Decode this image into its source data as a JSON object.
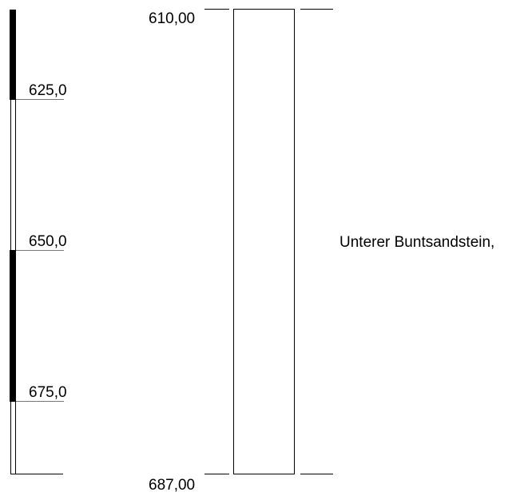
{
  "scale_bar": {
    "tick_labels": [
      "625,0",
      "650,0",
      "675,0"
    ],
    "segments": [
      {
        "from": 610.0,
        "to": 625.0,
        "fill": "black"
      },
      {
        "from": 625.0,
        "to": 650.0,
        "fill": "white"
      },
      {
        "from": 650.0,
        "to": 675.0,
        "fill": "black"
      },
      {
        "from": 675.0,
        "to": 687.0,
        "fill": "white"
      }
    ]
  },
  "column": {
    "top_depth_label": "610,00",
    "bottom_depth_label": "687,00"
  },
  "layers": [
    {
      "from": 610.0,
      "to": 687.0,
      "description": "Unterer Buntsandstein,"
    }
  ],
  "colors": {
    "ink": "#000000",
    "tick_line": "#777777",
    "background": "#ffffff"
  }
}
